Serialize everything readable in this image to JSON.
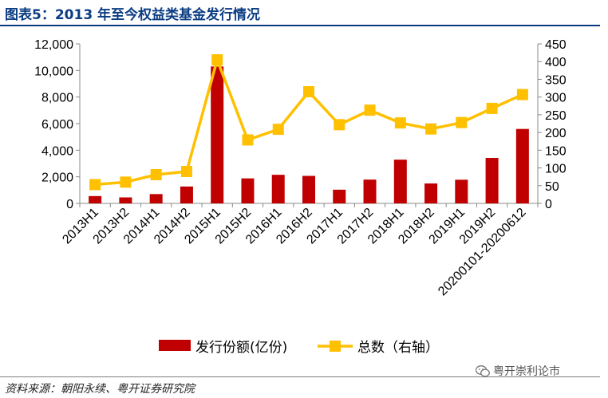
{
  "title": "图表5：2013 年至今权益类基金发行情况",
  "source": "资料来源：朝阳永续、粤开证券研究院",
  "watermark": {
    "text": "粤开崇利论市",
    "icon": "wechat-icon"
  },
  "colors": {
    "bar": "#c00000",
    "line": "#ffc000",
    "title": "#0b3c82"
  },
  "chart_data": {
    "type": "bar+line",
    "categories": [
      "2013H1",
      "2013H2",
      "2014H1",
      "2014H2",
      "2015H1",
      "2015H2",
      "2016H1",
      "2016H2",
      "2017H1",
      "2017H2",
      "2018H1",
      "2018H2",
      "2019H1",
      "2019H2",
      "20200101-20200612"
    ],
    "series": [
      {
        "name": "发行份额(亿份)",
        "type": "bar",
        "axis": "left",
        "values": [
          550,
          450,
          700,
          1270,
          10300,
          1880,
          2150,
          2070,
          1030,
          1790,
          3290,
          1500,
          1780,
          3420,
          5600
        ]
      },
      {
        "name": "总数（右轴）",
        "type": "line",
        "axis": "right",
        "values": [
          53,
          60,
          81,
          90,
          405,
          179,
          209,
          315,
          222,
          263,
          227,
          210,
          228,
          268,
          307
        ]
      }
    ],
    "left_axis": {
      "min": 0,
      "max": 12000,
      "step": 2000,
      "tick_labels": [
        "0",
        "2,000",
        "4,000",
        "6,000",
        "8,000",
        "10,000",
        "12,000"
      ]
    },
    "right_axis": {
      "min": 0,
      "max": 450,
      "step": 50,
      "tick_labels": [
        "0",
        "50",
        "100",
        "150",
        "200",
        "250",
        "300",
        "350",
        "400",
        "450"
      ]
    },
    "legend_position": "bottom",
    "grid": false
  }
}
